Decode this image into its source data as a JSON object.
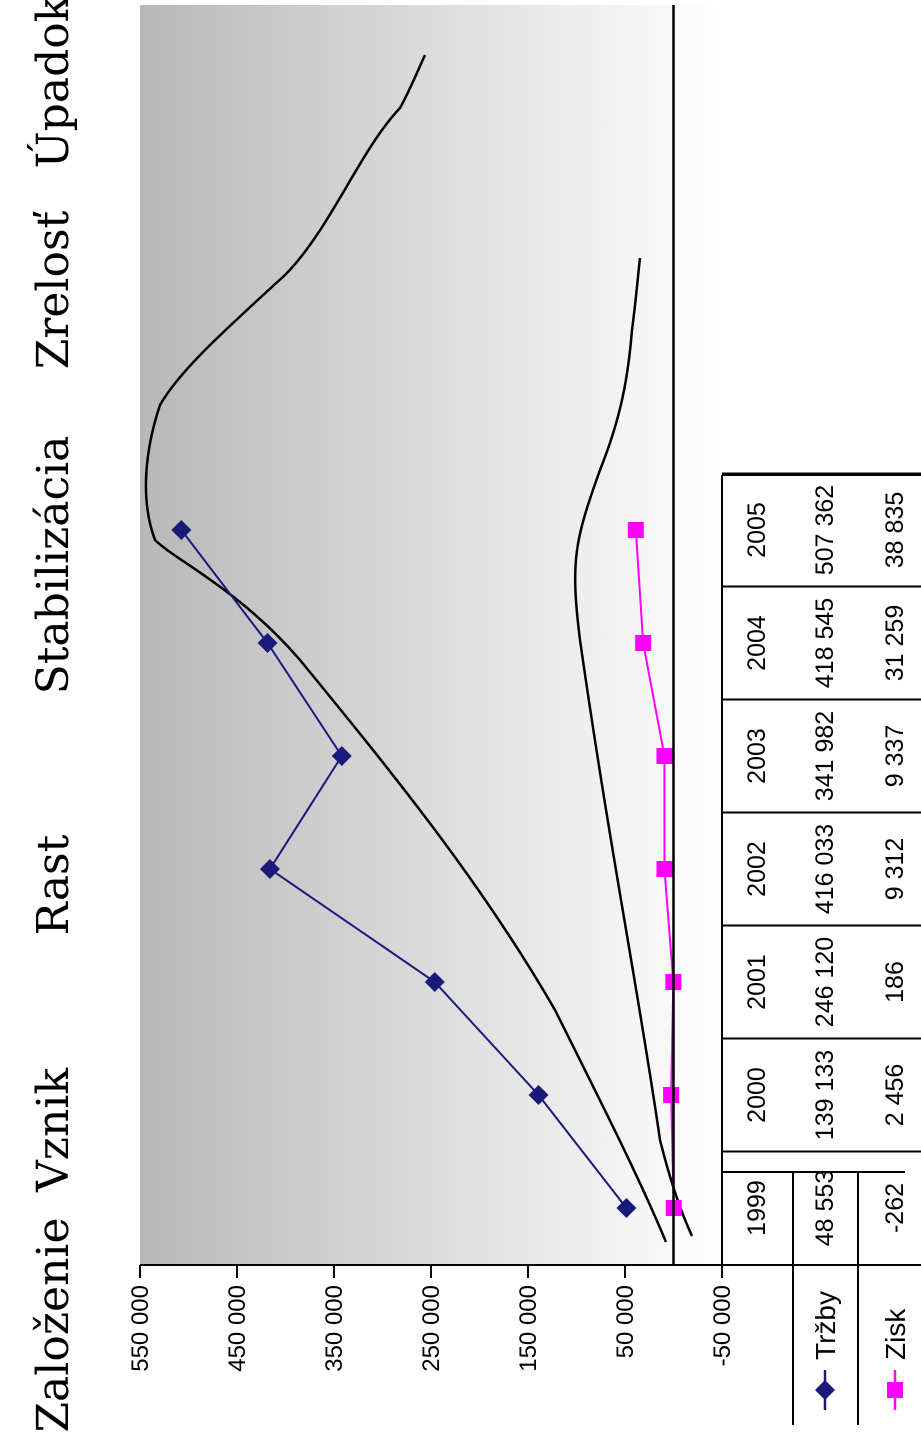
{
  "phases": [
    "Založenie",
    "Vznik",
    "Rast",
    "Stabilizácia",
    "Zrelosť",
    "Úpadok"
  ],
  "chart_data": {
    "type": "line",
    "orientation": "rotated 90° counter-clockwise (y-axis along bottom, x-axis along right)",
    "categories": [
      "1999",
      "2000",
      "2001",
      "2002",
      "2003",
      "2004",
      "2005"
    ],
    "ylim": [
      -50000,
      550000
    ],
    "y_ticks": [
      "-50 000",
      "50 000",
      "150 000",
      "250 000",
      "350 000",
      "450 000",
      "550 000"
    ],
    "y_tick_values": [
      -50000,
      50000,
      150000,
      250000,
      350000,
      450000,
      550000
    ],
    "legend_placement": "left, inside data table",
    "series": [
      {
        "name": "Tržby",
        "color": "#1a1a7a",
        "marker": "diamond",
        "values": [
          48553,
          139133,
          246120,
          416033,
          341982,
          418545,
          507362
        ],
        "table_values": [
          "48 553",
          "139 133",
          "246 120",
          "416 033",
          "341 982",
          "418 545",
          "507 362"
        ]
      },
      {
        "name": "Zisk",
        "color": "#ff00ff",
        "marker": "square",
        "values": [
          -262,
          2456,
          186,
          9312,
          9337,
          31259,
          38835
        ],
        "table_values": [
          "-262",
          "2 456",
          "186",
          "9 312",
          "9 337",
          "31 259",
          "38 835"
        ]
      }
    ]
  }
}
